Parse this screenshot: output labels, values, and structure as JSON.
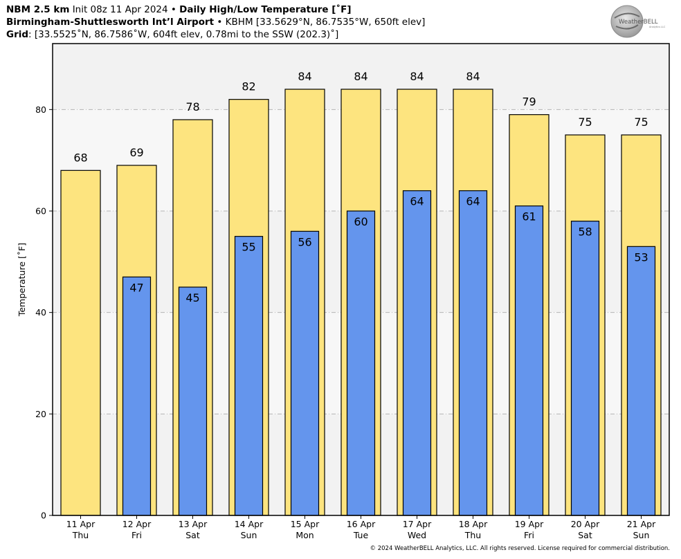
{
  "header": {
    "model": "NBM 2.5 km",
    "init": "Init 08z 11 Apr 2024",
    "bullet": "•",
    "product": "Daily High/Low Temperature [˚F]",
    "station_name": "Birmingham-Shuttlesworth Int’l Airport",
    "station_info": "KBHM [33.5629°N, 86.7535°W, 650ft elev]",
    "grid_label": "Grid",
    "grid_info": ": [33.5525˚N, 86.7586˚W, 604ft elev, 0.78mi to the SSW (202.3)˚]"
  },
  "logo": {
    "main": "WeatherBELL",
    "sub": "Analytics LLC"
  },
  "footer": "© 2024 WeatherBELL Analytics, LLC. All rights reserved. License required for commercial distribution.",
  "chart_data": {
    "type": "bar",
    "ylabel": "Temperature [˚F]",
    "ylim": [
      0,
      93
    ],
    "yticks": [
      0,
      20,
      40,
      60,
      80
    ],
    "grid": true,
    "categories": [
      [
        "11 Apr",
        "Thu"
      ],
      [
        "12 Apr",
        "Fri"
      ],
      [
        "13 Apr",
        "Sat"
      ],
      [
        "14 Apr",
        "Sun"
      ],
      [
        "15 Apr",
        "Mon"
      ],
      [
        "16 Apr",
        "Tue"
      ],
      [
        "17 Apr",
        "Wed"
      ],
      [
        "18 Apr",
        "Thu"
      ],
      [
        "19 Apr",
        "Fri"
      ],
      [
        "20 Apr",
        "Sat"
      ],
      [
        "21 Apr",
        "Sun"
      ]
    ],
    "series": [
      {
        "values": [
          68,
          69,
          78,
          82,
          84,
          84,
          84,
          84,
          79,
          75,
          75
        ],
        "color": "#fde47f"
      },
      {
        "values": [
          null,
          47,
          45,
          55,
          56,
          60,
          64,
          64,
          61,
          58,
          53
        ],
        "color": "#6495ed"
      }
    ]
  }
}
